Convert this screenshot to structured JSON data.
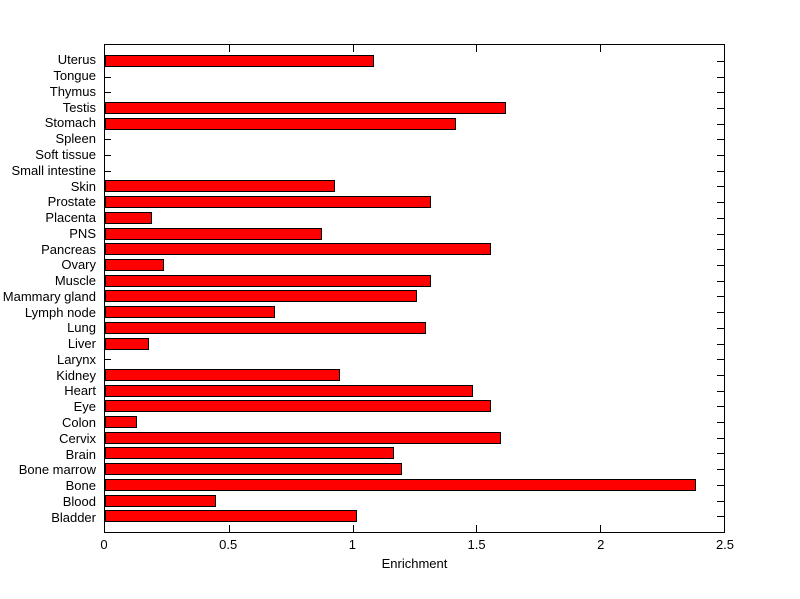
{
  "figure": {
    "background_color": "#FFFFFF"
  },
  "chart_data": {
    "type": "bar",
    "orientation": "horizontal",
    "title": "",
    "xlabel": "Enrichment",
    "ylabel": "",
    "xlim": [
      0,
      2.5
    ],
    "xticks": [
      0,
      0.5,
      1,
      1.5,
      2,
      2.5
    ],
    "xtick_labels": [
      "0",
      "0.5",
      "1",
      "1.5",
      "2",
      "2.5"
    ],
    "grid": false,
    "legend": "none",
    "bar_color": "#FF0000",
    "bar_edge_color": "#000000",
    "categories": [
      "Uterus",
      "Tongue",
      "Thymus",
      "Testis",
      "Stomach",
      "Spleen",
      "Soft tissue",
      "Small intestine",
      "Skin",
      "Prostate",
      "Placenta",
      "PNS",
      "Pancreas",
      "Ovary",
      "Muscle",
      "Mammary gland",
      "Lymph node",
      "Lung",
      "Liver",
      "Larynx",
      "Kidney",
      "Heart",
      "Eye",
      "Colon",
      "Cervix",
      "Brain",
      "Bone marrow",
      "Bone",
      "Blood",
      "Bladder"
    ],
    "values": [
      1.08,
      0,
      0,
      1.61,
      1.41,
      0,
      0,
      0,
      0.92,
      1.31,
      0.18,
      0.87,
      1.55,
      0.23,
      1.31,
      1.25,
      0.68,
      1.29,
      0.17,
      0,
      0.94,
      1.48,
      1.55,
      0.12,
      1.59,
      1.16,
      1.19,
      2.38,
      0.44,
      1.01
    ]
  }
}
